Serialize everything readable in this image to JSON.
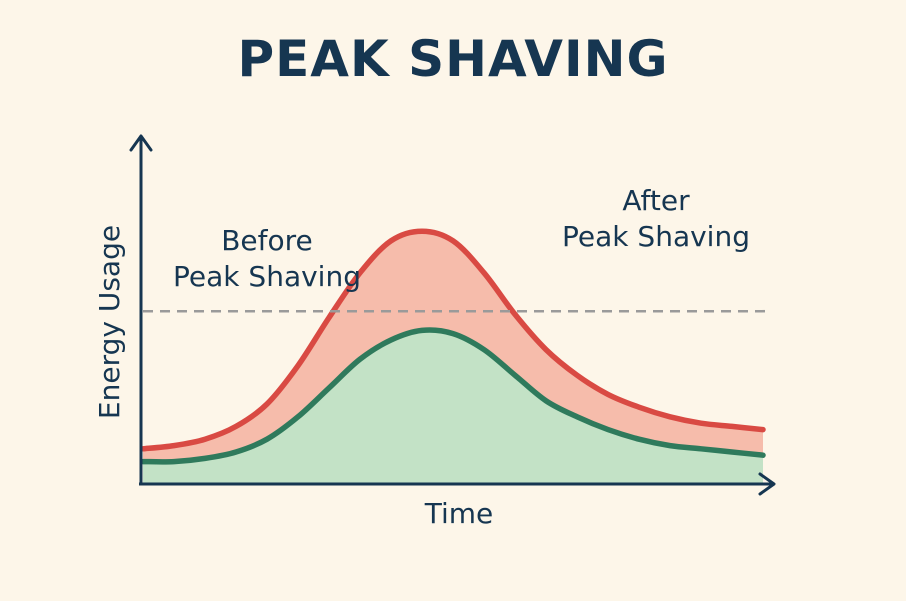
{
  "title": "PEAK SHAVING",
  "chart_data": {
    "type": "area",
    "title": "PEAK SHAVING",
    "xlabel": "Time",
    "ylabel": "Energy Usage",
    "xlim": [
      0,
      100
    ],
    "ylim": [
      0,
      100
    ],
    "threshold": 54,
    "series": [
      {
        "name": "Before\nPeak Shaving",
        "color": "#d94a43",
        "fill": "#f6bcab",
        "x": [
          0,
          5,
          10,
          15,
          20,
          25,
          30,
          35,
          40,
          45,
          50,
          55,
          60,
          65,
          70,
          75,
          80,
          85,
          90,
          95,
          100
        ],
        "values": [
          11,
          12,
          14,
          18,
          25,
          37,
          52,
          66,
          76,
          79,
          76,
          66,
          53,
          42,
          34,
          28,
          24,
          21,
          19,
          18,
          17
        ]
      },
      {
        "name": "After\nPeak Shaving",
        "color": "#2f7a5c",
        "fill": "#c3e2c6",
        "x": [
          0,
          5,
          10,
          15,
          20,
          25,
          30,
          35,
          40,
          45,
          50,
          55,
          60,
          65,
          70,
          75,
          80,
          85,
          90,
          95,
          100
        ],
        "values": [
          7,
          7,
          8,
          10,
          14,
          21,
          30,
          39,
          45,
          48,
          47,
          42,
          34,
          26,
          21,
          17,
          14,
          12,
          11,
          10,
          9
        ]
      }
    ],
    "grid": false,
    "colors": {
      "axis": "#163651",
      "threshold": "#9a9a9a"
    }
  }
}
